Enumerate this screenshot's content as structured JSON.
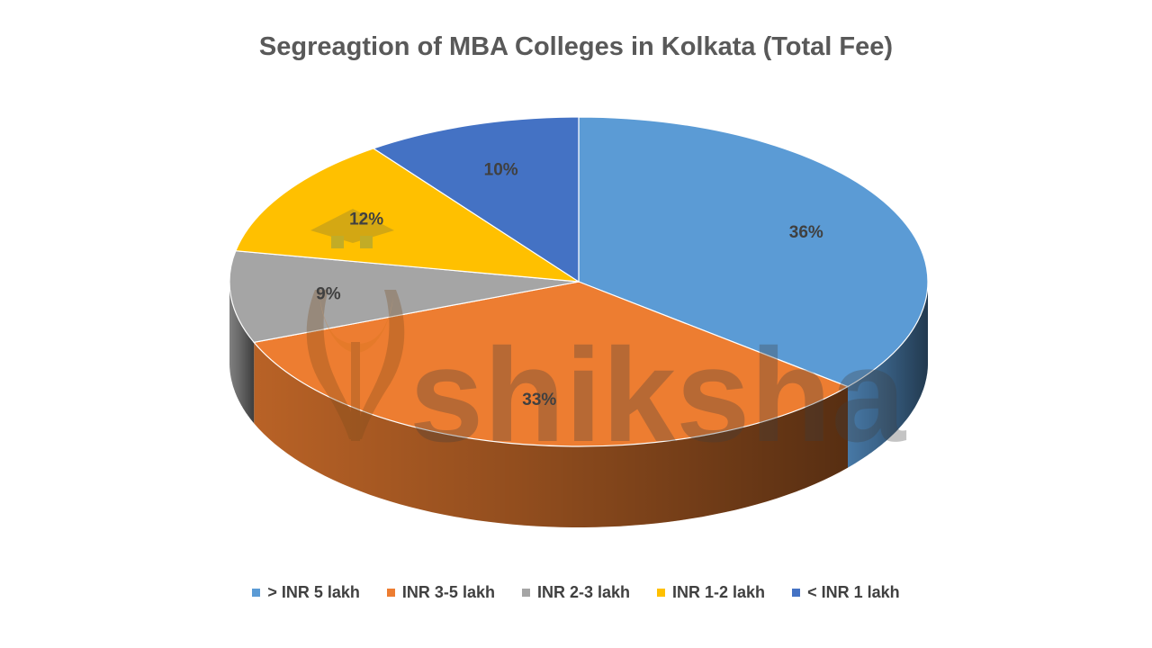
{
  "chart_data": {
    "type": "pie",
    "title": "Segreagtion of MBA Colleges in Kolkata (Total Fee)",
    "categories": [
      "> INR 5 lakh",
      "INR 3-5 lakh",
      "INR 2-3 lakh",
      "INR 1-2 lakh",
      "< INR 1 lakh"
    ],
    "values": [
      36,
      33,
      9,
      12,
      10
    ],
    "data_labels": [
      "36%",
      "33%",
      "9%",
      "12%",
      "10%"
    ],
    "colors": [
      "#5B9BD5",
      "#ED7D31",
      "#A5A5A5",
      "#FFC000",
      "#4472C4"
    ],
    "style": "3d",
    "legend_position": "bottom"
  },
  "watermark": {
    "text": "shiksha",
    "icon": "shiksha-logo-icon"
  }
}
